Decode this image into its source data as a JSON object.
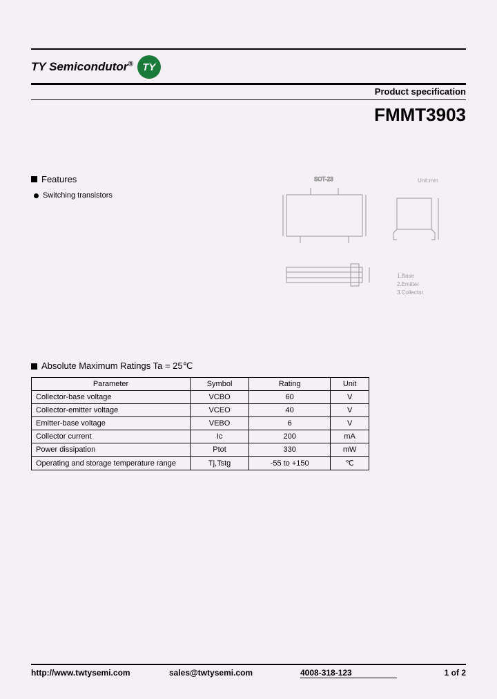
{
  "header": {
    "brand": "TY Semicondutor",
    "logo_text": "TY",
    "logo_bg": "#1a7a3a",
    "logo_fg": "#ffffff",
    "spec_label": "Product specification",
    "part_number": "FMMT3903"
  },
  "features": {
    "heading": "Features",
    "items": [
      "Switching transistors"
    ]
  },
  "package": {
    "label": "SOT-23",
    "unit_label": "Unit:mm",
    "pins": [
      "1.Base",
      "2.Emitter",
      "3.Collector"
    ]
  },
  "ratings": {
    "heading": "Absolute Maximum Ratings Ta = 25℃",
    "columns": [
      "Parameter",
      "Symbol",
      "Rating",
      "Unit"
    ],
    "rows": [
      {
        "param": "Collector-base voltage",
        "symbol": "VCBO",
        "rating": "60",
        "unit": "V"
      },
      {
        "param": "Collector-emitter voltage",
        "symbol": "VCEO",
        "rating": "40",
        "unit": "V"
      },
      {
        "param": "Emitter-base voltage",
        "symbol": "VEBO",
        "rating": "6",
        "unit": "V"
      },
      {
        "param": "Collector current",
        "symbol": "Ic",
        "rating": "200",
        "unit": "mA"
      },
      {
        "param": "Power dissipation",
        "symbol": "Ptot",
        "rating": "330",
        "unit": "mW"
      },
      {
        "param": "Operating and storage temperature range",
        "symbol": "Tj,Tstg",
        "rating": "-55 to +150",
        "unit": "℃"
      }
    ]
  },
  "footer": {
    "url": "http://www.twtysemi.com",
    "email": "sales@twtysemi.com",
    "phone": "4008-318-123",
    "page": "1 of 2"
  },
  "colors": {
    "page_bg": "#f5f0f5",
    "text": "#000000",
    "rule": "#000000",
    "diagram_stroke": "#999999"
  }
}
